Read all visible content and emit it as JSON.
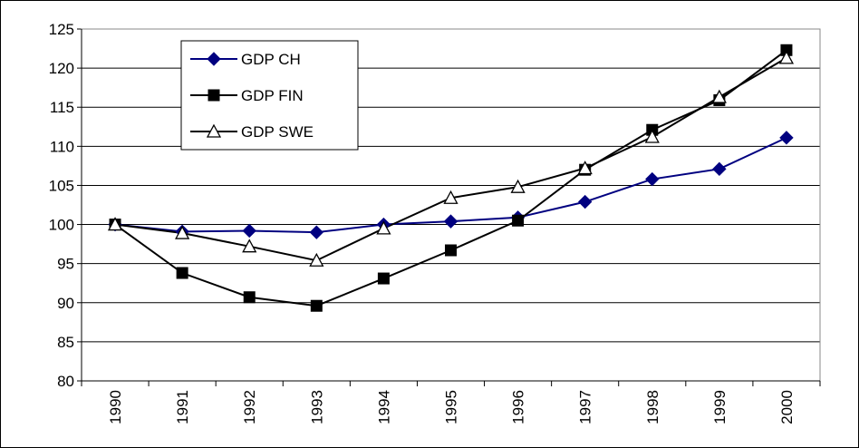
{
  "chart_data": {
    "type": "line",
    "categories": [
      "1990",
      "1991",
      "1992",
      "1993",
      "1994",
      "1995",
      "1996",
      "1997",
      "1998",
      "1999",
      "2000"
    ],
    "series": [
      {
        "name": "GDP CH",
        "color": "#000080",
        "marker": "diamond",
        "values": [
          100,
          99.1,
          99.2,
          99.0,
          100,
          100.4,
          100.9,
          102.9,
          105.8,
          107.1,
          111.1
        ]
      },
      {
        "name": "GDP FIN",
        "color": "#000000",
        "marker": "square",
        "values": [
          100,
          93.8,
          90.7,
          89.6,
          93.1,
          96.7,
          100.5,
          107.0,
          112.1,
          115.9,
          122.3
        ]
      },
      {
        "name": "GDP SWE",
        "color": "#000000",
        "marker": "triangle",
        "values": [
          100,
          98.9,
          97.2,
          95.4,
          99.5,
          103.4,
          104.8,
          107.2,
          111.2,
          116.3,
          121.3
        ]
      }
    ],
    "ylim": [
      80,
      125
    ],
    "yticks": [
      80,
      85,
      90,
      95,
      100,
      105,
      110,
      115,
      120,
      125
    ],
    "grid": true,
    "legend": "upper left"
  }
}
